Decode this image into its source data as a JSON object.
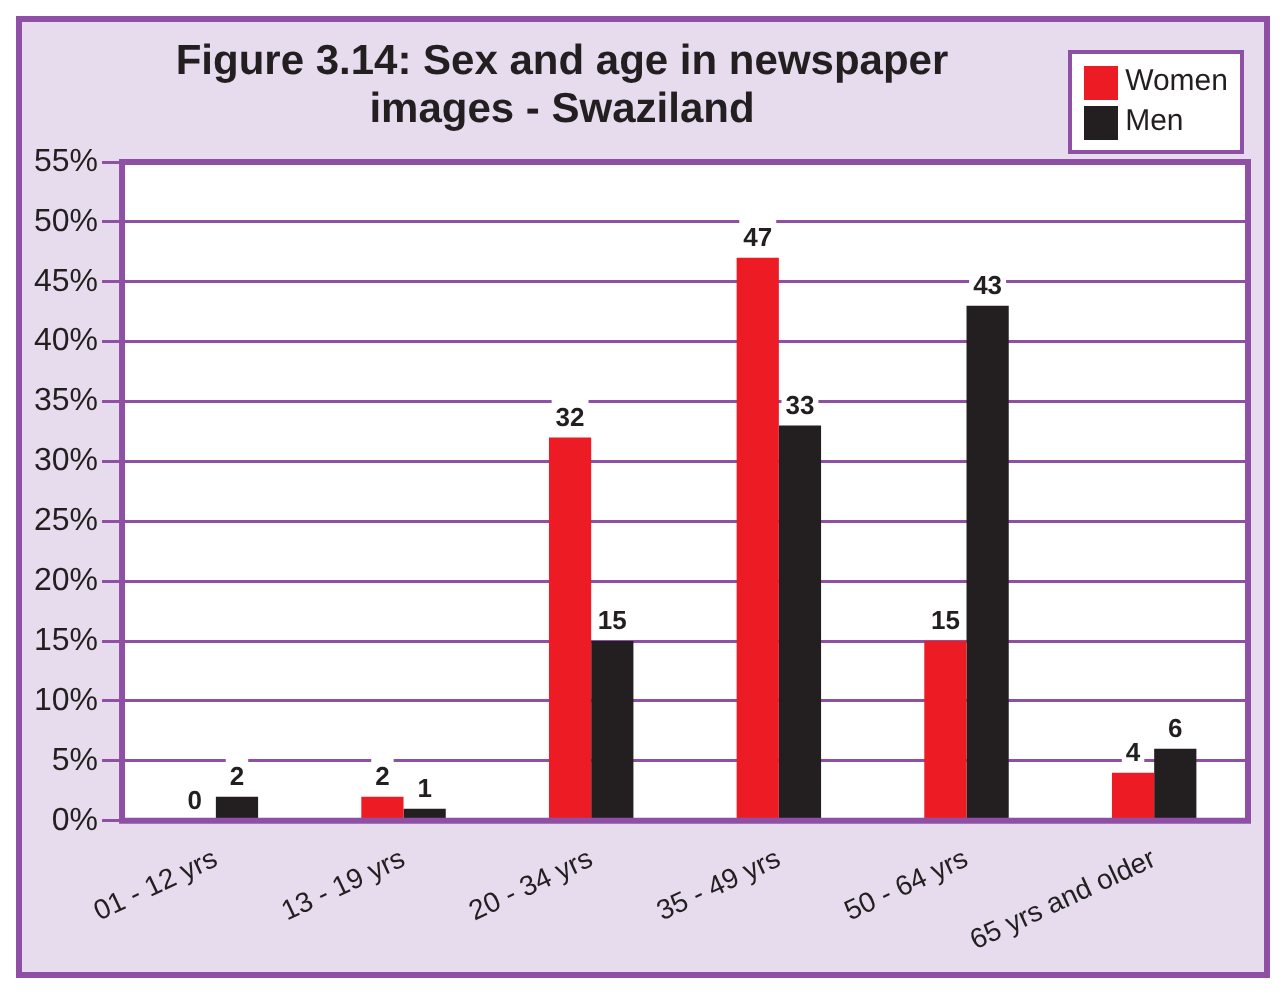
{
  "chart_data": {
    "type": "bar",
    "title": "Figure 3.14: Sex and age in newspaper images - Swaziland",
    "categories": [
      "01 - 12 yrs",
      "13 - 19 yrs",
      "20 - 34 yrs",
      "35 - 49 yrs",
      "50 - 64 yrs",
      "65 yrs and older"
    ],
    "series": [
      {
        "name": "Women",
        "color": "#ed1c24",
        "values": [
          0,
          2,
          32,
          47,
          15,
          4
        ]
      },
      {
        "name": "Men",
        "color": "#231f20",
        "values": [
          2,
          1,
          15,
          33,
          43,
          6
        ]
      }
    ],
    "ylim": [
      0,
      55
    ],
    "yticks": [
      {
        "value": 0,
        "label": "0%"
      },
      {
        "value": 5,
        "label": "5%"
      },
      {
        "value": 10,
        "label": "10%"
      },
      {
        "value": 15,
        "label": "15%"
      },
      {
        "value": 20,
        "label": "20%"
      },
      {
        "value": 25,
        "label": "25%"
      },
      {
        "value": 30,
        "label": "30%"
      },
      {
        "value": 35,
        "label": "35%"
      },
      {
        "value": 40,
        "label": "40%"
      },
      {
        "value": 45,
        "label": "45%"
      },
      {
        "value": 50,
        "label": "50%"
      },
      {
        "value": 55,
        "label": "55%"
      }
    ],
    "grid": "y",
    "legend": "top right",
    "data_labels": true
  }
}
